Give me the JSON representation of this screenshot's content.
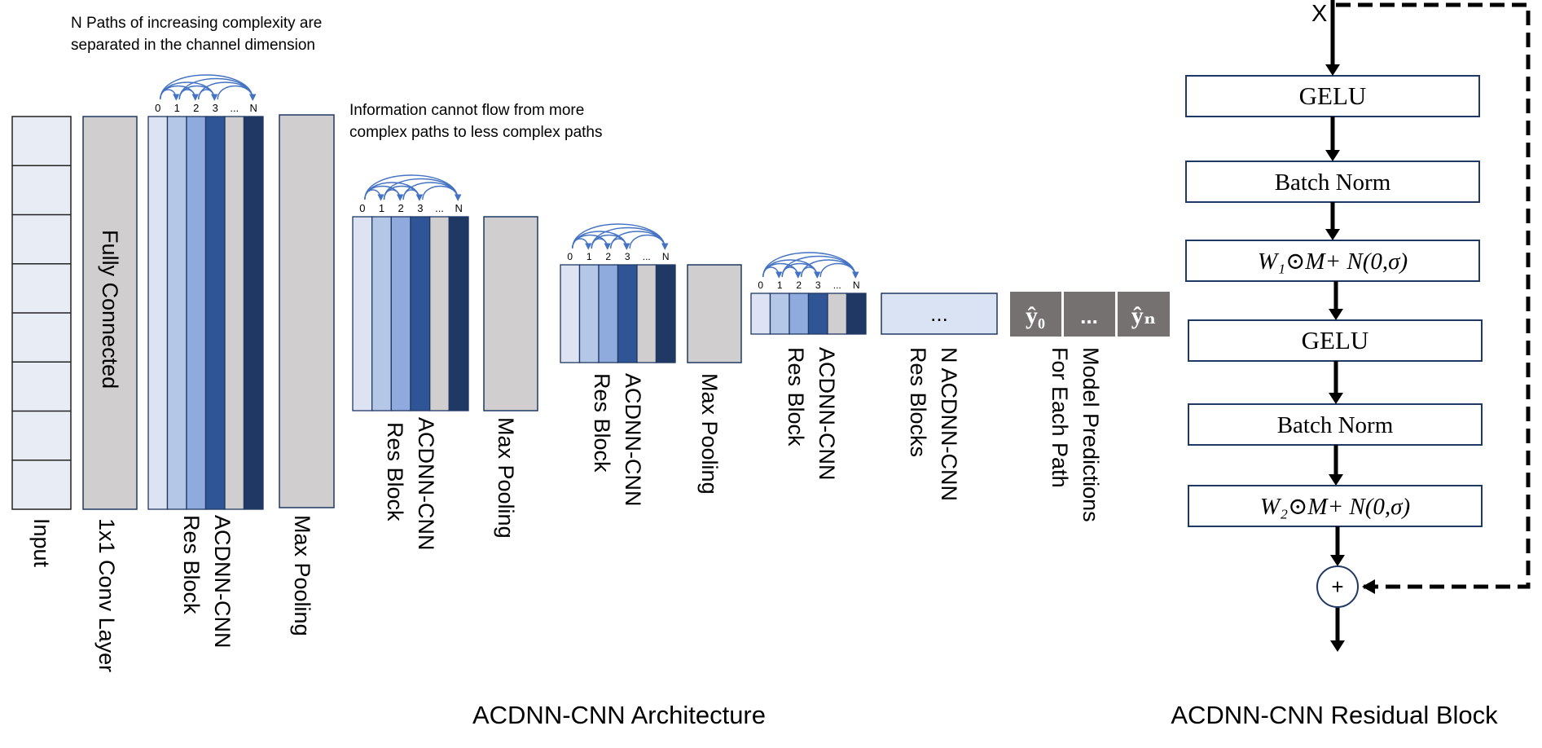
{
  "notes": {
    "paths": [
      "N Paths of increasing complexity are",
      "separated in the channel dimension"
    ],
    "flow": [
      "Information cannot flow from more",
      "complex paths to less complex paths"
    ]
  },
  "arch": {
    "input_label": "Input",
    "fc_label": "Fully Connected",
    "conv_label": "1x1 Conv Layer",
    "res_block_lines": [
      "ACDNN-CNN",
      "Res Block"
    ],
    "max_pool_label": "Max Pooling",
    "path_indices": [
      "0",
      "1",
      "2",
      "3",
      "...",
      "N"
    ],
    "n_blocks_box": "...",
    "n_blocks_lines": [
      "N ACDNN-CNN",
      "Res Blocks"
    ],
    "pred_cells": [
      "ŷ₀",
      "...",
      "ŷₙ"
    ],
    "pred_lines": [
      "Model Predictions",
      "For Each Path"
    ],
    "caption": "ACDNN-CNN Architecture"
  },
  "residual": {
    "input": "X",
    "layers": [
      "GELU",
      "Batch Norm",
      "W₁⊙M+ N(0,σ)",
      "GELU",
      "Batch Norm",
      "W₂⊙M+ N(0,σ)"
    ],
    "sum": "+",
    "caption": "ACDNN-CNN Residual Block"
  },
  "colors": {
    "path": [
      "#dde3f2",
      "#b4c7e7",
      "#8faadc",
      "#2f5597",
      "#d0cece",
      "#1f3864"
    ],
    "input_fill": "#e8ecf5",
    "grey_block": "#d0cece",
    "pred_fill": "#767171",
    "n_blocks_fill": "#dae3f3",
    "stroke": "#1f3864",
    "arc": "#4472c4"
  }
}
